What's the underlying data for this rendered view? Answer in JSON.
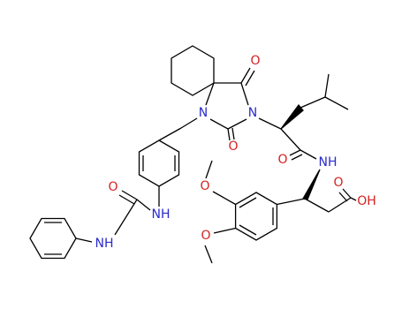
{
  "molecule": {
    "atom_labels": [
      "N",
      "N",
      "O",
      "O",
      "O",
      "NH",
      "O",
      "OH",
      "O",
      "O",
      "NH",
      "O",
      "NH"
    ]
  }
}
